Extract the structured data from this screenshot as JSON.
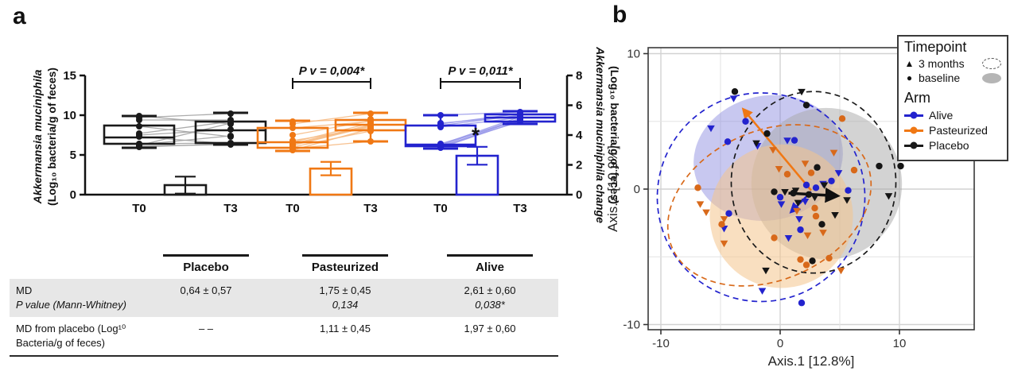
{
  "panels": {
    "a": "a",
    "b": "b"
  },
  "table": {
    "col_headers": [
      "Placebo",
      "Pasteurized",
      "Alive"
    ],
    "rows": [
      {
        "label_line1": "MD",
        "label_line2": "P value (Mann-Whitney)",
        "cells": [
          {
            "line1": "0,64 ± 0,57",
            "line2": ""
          },
          {
            "line1": "1,75 ± 0,45",
            "line2": "0,134"
          },
          {
            "line1": "2,61 ± 0,60",
            "line2": "0,038*"
          }
        ]
      },
      {
        "label_line1": "MD from placebo (Log¹⁰",
        "label_line2": "Bacteria/g of feces)",
        "cells": [
          {
            "line1": "– –",
            "line2": ""
          },
          {
            "line1": "1,11 ± 0,45",
            "line2": ""
          },
          {
            "line1": "1,97 ± 0,60",
            "line2": ""
          }
        ]
      }
    ]
  },
  "chart_data": [
    {
      "type": "box",
      "panel": "a",
      "y_left": {
        "title_italic": "Akkermansia muciniphila",
        "title_rest": "(Log₁₀ bacteria/g of feces)",
        "ticks": [
          0,
          5,
          10,
          15
        ],
        "range": [
          0,
          15
        ]
      },
      "y_right": {
        "title_italic": "Akkermansia muciniphila change",
        "title_rest": "(Log₁₀ bacteria/g of feces)",
        "ticks": [
          0,
          2,
          4,
          6,
          8
        ],
        "range": [
          0,
          8
        ]
      },
      "x_tick_labels": [
        "T0",
        "T3"
      ],
      "groups": [
        {
          "name": "Placebo",
          "color": "#1a1a1a",
          "pair_line_color": "#a3a3a3",
          "p_annotation": "",
          "t0": {
            "lo": 5.9,
            "q1": 6.4,
            "med": 7.2,
            "q3": 8.7,
            "hi": 9.9
          },
          "t3": {
            "lo": 6.3,
            "q1": 6.5,
            "med": 8.1,
            "q3": 9.2,
            "hi": 10.3
          },
          "pairs": [
            [
              6.0,
              6.4
            ],
            [
              6.1,
              6.3
            ],
            [
              6.2,
              9.0
            ],
            [
              6.4,
              6.5
            ],
            [
              7.3,
              6.4
            ],
            [
              7.5,
              8.2
            ],
            [
              7.7,
              9.2
            ],
            [
              8.6,
              7.3
            ],
            [
              9.4,
              9.4
            ],
            [
              9.7,
              10.2
            ],
            [
              9.9,
              8.9
            ],
            [
              6.3,
              7.4
            ]
          ],
          "bar": {
            "md": 0.64,
            "sd": 0.57,
            "star": false
          }
        },
        {
          "name": "Pasteurized",
          "color": "#F07814",
          "pair_line_color": "#f6bb85",
          "p_annotation": "P v = 0,004*",
          "t0": {
            "lo": 5.5,
            "q1": 5.9,
            "med": 6.6,
            "q3": 8.4,
            "hi": 9.3
          },
          "t3": {
            "lo": 6.7,
            "q1": 8.1,
            "med": 8.8,
            "q3": 9.4,
            "hi": 10.3
          },
          "pairs": [
            [
              5.6,
              8.3
            ],
            [
              5.8,
              6.7
            ],
            [
              6.0,
              8.0
            ],
            [
              6.2,
              8.6
            ],
            [
              6.3,
              8.7
            ],
            [
              6.4,
              8.8
            ],
            [
              6.6,
              9.0
            ],
            [
              6.8,
              8.4
            ],
            [
              7.5,
              9.3
            ],
            [
              8.4,
              9.2
            ],
            [
              8.9,
              10.2
            ],
            [
              9.2,
              9.5
            ]
          ],
          "bar": {
            "md": 1.75,
            "sd": 0.45,
            "star": false
          }
        },
        {
          "name": "Alive",
          "color": "#2323CE",
          "pair_line_color": "#9a9aea",
          "p_annotation": "P v = 0,011*",
          "t0": {
            "lo": 5.8,
            "q1": 6.1,
            "med": 6.3,
            "q3": 8.7,
            "hi": 10.0
          },
          "t3": {
            "lo": 8.9,
            "q1": 9.2,
            "med": 9.7,
            "q3": 10.1,
            "hi": 10.5
          },
          "pairs": [
            [
              5.9,
              9.3
            ],
            [
              6.0,
              9.5
            ],
            [
              6.1,
              9.2
            ],
            [
              6.2,
              9.6
            ],
            [
              6.3,
              9.8
            ],
            [
              6.4,
              9.4
            ],
            [
              8.5,
              9.7
            ],
            [
              8.7,
              10.0
            ],
            [
              8.9,
              10.2
            ],
            [
              9.0,
              9.9
            ],
            [
              10.0,
              10.4
            ]
          ],
          "bar": {
            "md": 2.61,
            "sd": 0.6,
            "star": true
          }
        }
      ]
    },
    {
      "type": "scatter",
      "panel": "b",
      "x_label": "Axis.1  [12.8%]",
      "y_label": "Axis.2  [10.9%]",
      "x_ticks": [
        -10,
        0,
        10
      ],
      "y_ticks": [
        -10,
        0,
        10
      ],
      "grid_lines": [
        -10,
        -5,
        0,
        5,
        10
      ],
      "xlim": [
        -11,
        12.3
      ],
      "ylim": [
        -10.5,
        10.5
      ],
      "series": [
        {
          "name": "Alive baseline",
          "arm": "Alive",
          "timepoint": "baseline",
          "shape": "circle",
          "color": "#2323CE",
          "points": [
            [
              -2.9,
              5.0
            ],
            [
              -4.4,
              3.5
            ],
            [
              1.2,
              3.6
            ],
            [
              4.3,
              0.6
            ],
            [
              5.7,
              -0.1
            ],
            [
              -4.3,
              -1.8
            ],
            [
              1.7,
              -3.0
            ],
            [
              1.8,
              -8.4
            ],
            [
              2.2,
              0.3
            ],
            [
              3.0,
              0.1
            ],
            [
              0.0,
              -0.6
            ]
          ]
        },
        {
          "name": "Alive 3 months",
          "arm": "Alive",
          "timepoint": "3 months",
          "shape": "triangle-down",
          "color": "#2323CE",
          "points": [
            [
              -3.9,
              6.7
            ],
            [
              -5.8,
              4.5
            ],
            [
              0.6,
              3.6
            ],
            [
              -1.9,
              3.2
            ],
            [
              4.9,
              1.2
            ],
            [
              3.6,
              0.4
            ],
            [
              -4.7,
              -2.9
            ],
            [
              0.7,
              -3.6
            ],
            [
              1.6,
              -2.2
            ],
            [
              -1.5,
              -7.5
            ],
            [
              0.1,
              -1.1
            ],
            [
              2.1,
              -0.9
            ]
          ]
        },
        {
          "name": "Pasteurized baseline",
          "arm": "Pasteurized",
          "timepoint": "baseline",
          "shape": "circle",
          "color": "#D8691A",
          "points": [
            [
              5.2,
              5.2
            ],
            [
              -6.9,
              0.1
            ],
            [
              2.6,
              1.2
            ],
            [
              0.6,
              1.1
            ],
            [
              6.2,
              1.4
            ],
            [
              -4.9,
              -2.6
            ],
            [
              -0.5,
              -3.6
            ],
            [
              3.0,
              -2.0
            ],
            [
              1.7,
              -5.2
            ],
            [
              2.2,
              -5.6
            ],
            [
              4.1,
              -5.1
            ],
            [
              2.9,
              -1.4
            ]
          ]
        },
        {
          "name": "Pasteurized 3 months",
          "arm": "Pasteurized",
          "timepoint": "3 months",
          "shape": "triangle-down",
          "color": "#D8691A",
          "points": [
            [
              -0.6,
              2.9
            ],
            [
              4.5,
              2.7
            ],
            [
              2.1,
              1.9
            ],
            [
              -6.7,
              -1.1
            ],
            [
              -6.2,
              -1.7
            ],
            [
              -4.7,
              -2.2
            ],
            [
              -4.7,
              -4.0
            ],
            [
              3.6,
              -3.2
            ],
            [
              5.1,
              -6.0
            ],
            [
              1.4,
              -1.6
            ],
            [
              -0.1,
              1.5
            ],
            [
              2.3,
              -3.4
            ]
          ]
        },
        {
          "name": "Placebo baseline",
          "arm": "Placebo",
          "timepoint": "baseline",
          "shape": "circle",
          "color": "#151515",
          "points": [
            [
              -3.8,
              7.2
            ],
            [
              2.2,
              6.2
            ],
            [
              -1.1,
              4.1
            ],
            [
              3.1,
              1.6
            ],
            [
              8.3,
              1.7
            ],
            [
              10.1,
              1.7
            ],
            [
              3.5,
              -2.6
            ],
            [
              2.7,
              -5.3
            ],
            [
              1.1,
              -0.3
            ],
            [
              2.4,
              -0.4
            ],
            [
              -0.5,
              -0.2
            ]
          ]
        },
        {
          "name": "Placebo 3 months",
          "arm": "Placebo",
          "timepoint": "3 months",
          "shape": "triangle-down",
          "color": "#151515",
          "points": [
            [
              1.8,
              7.2
            ],
            [
              -2.0,
              3.4
            ],
            [
              3.7,
              0.3
            ],
            [
              9.1,
              -0.5
            ],
            [
              4.6,
              -1.9
            ],
            [
              -1.2,
              -6.0
            ],
            [
              5.6,
              -0.8
            ],
            [
              1.3,
              -0.1
            ],
            [
              0.4,
              -0.2
            ],
            [
              2.9,
              -0.6
            ],
            [
              1.5,
              -1.0
            ]
          ]
        }
      ],
      "ellipses_filled": [
        {
          "arm": "Alive",
          "cx": -1.0,
          "cy": 2.3,
          "rx": 6.3,
          "ry": 4.6,
          "rot": -12,
          "color": "#8585de",
          "opacity": 0.45
        },
        {
          "arm": "Placebo",
          "cx": 3.9,
          "cy": 0.4,
          "rx": 6.3,
          "ry": 5.6,
          "rot": -25,
          "color": "#a8a8a8",
          "opacity": 0.5
        },
        {
          "arm": "Pasteurized",
          "cx": 0.1,
          "cy": -2.0,
          "rx": 6.0,
          "ry": 5.3,
          "rot": -15,
          "color": "#f4c48c",
          "opacity": 0.55
        }
      ],
      "ellipses_dashed": [
        {
          "arm": "Alive",
          "cx": -1.6,
          "cy": -0.6,
          "rx": 8.7,
          "ry": 7.7,
          "rot": 8,
          "color": "#2323CE"
        },
        {
          "arm": "Placebo",
          "cx": 2.8,
          "cy": 0.5,
          "rx": 6.9,
          "ry": 6.7,
          "rot": 0,
          "color": "#1a1a1a"
        },
        {
          "arm": "Pasteurized",
          "cx": -0.9,
          "cy": -1.2,
          "rx": 8.9,
          "ry": 5.5,
          "rot": -24,
          "color": "#D8691A"
        }
      ],
      "arrows": [
        {
          "x1": 2.6,
          "y1": -0.1,
          "x2": -3.1,
          "y2": 5.9,
          "color": "#F07814",
          "width": 2.5
        },
        {
          "x1": 2.6,
          "y1": -0.2,
          "x2": 0.9,
          "y2": -1.7,
          "color": "#2323CE",
          "width": 2.5
        },
        {
          "x1": 0.7,
          "y1": -0.3,
          "x2": 4.8,
          "y2": -0.5,
          "color": "#111111",
          "width": 3.5
        }
      ],
      "legend": {
        "timepoint_title": "Timepoint",
        "timepoints": [
          {
            "label": "3 months"
          },
          {
            "label": "baseline"
          }
        ],
        "arm_title": "Arm",
        "arms": [
          {
            "label": "Alive",
            "color": "#2323CE"
          },
          {
            "label": "Pasteurized",
            "color": "#F07814"
          },
          {
            "label": "Placebo",
            "color": "#1a1a1a"
          }
        ]
      }
    }
  ]
}
